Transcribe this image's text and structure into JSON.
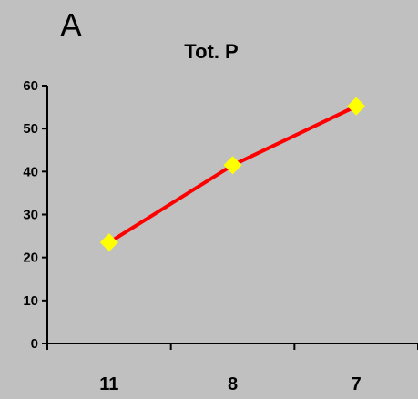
{
  "panel_label": "A",
  "chart_data": {
    "type": "line",
    "title": "Tot. P",
    "xlabel": "",
    "ylabel": "",
    "categories": [
      "11",
      "8",
      "7"
    ],
    "series": [
      {
        "values": [
          23.5,
          41.5,
          55.2
        ],
        "line_color": "#ff0000",
        "marker_color": "#ffff00",
        "marker": "diamond"
      }
    ],
    "ylim": [
      0,
      60
    ],
    "yticks": [
      0,
      10,
      20,
      30,
      40,
      50,
      60
    ],
    "grid": false,
    "legend": "none"
  }
}
